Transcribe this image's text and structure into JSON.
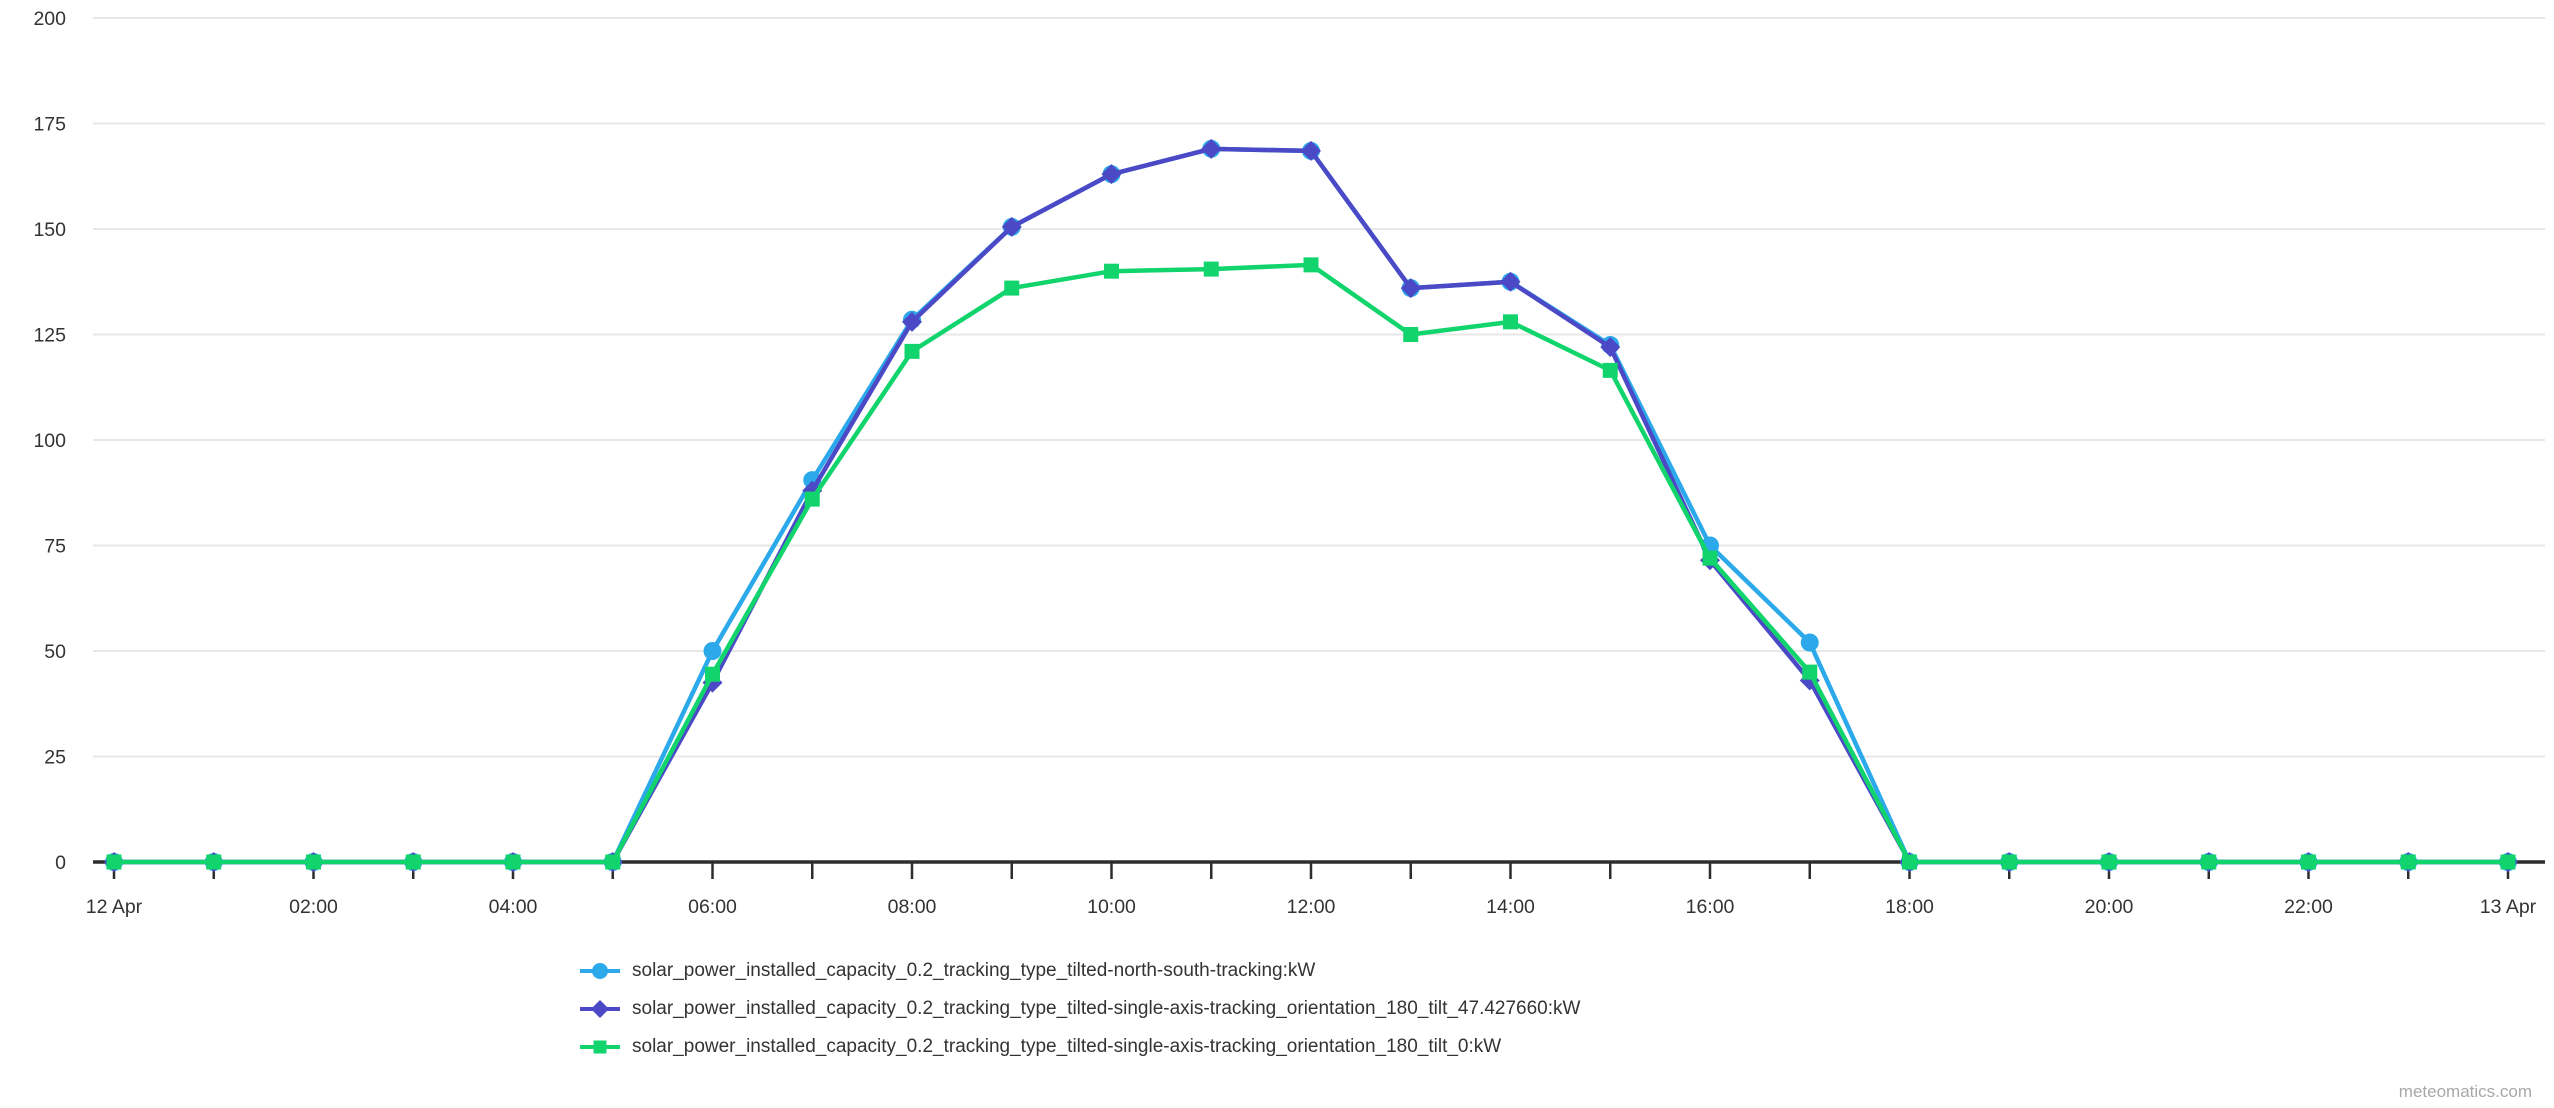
{
  "watermark": "meteomatics.com",
  "colors": {
    "grid": "#e7e7e7",
    "axis": "#2d2d2d",
    "tick_label": "#333333",
    "legend_text": "#333333",
    "watermark": "#a8a8a8",
    "background": "#ffffff"
  },
  "chart_data": {
    "type": "line",
    "title": "",
    "xlabel": "",
    "ylabel": "",
    "ylim": [
      0,
      200
    ],
    "yticks": [
      0,
      25,
      50,
      75,
      100,
      125,
      150,
      175,
      200
    ],
    "grid": true,
    "legend_position": "bottom",
    "x_axis_unit": "hour",
    "x_hours": [
      0,
      1,
      2,
      3,
      4,
      5,
      6,
      7,
      8,
      9,
      10,
      11,
      12,
      13,
      14,
      15,
      16,
      17,
      18,
      19,
      20,
      21,
      22,
      23,
      24
    ],
    "xtick_labels": [
      {
        "hour": 0,
        "label": "12 Apr"
      },
      {
        "hour": 2,
        "label": "02:00"
      },
      {
        "hour": 4,
        "label": "04:00"
      },
      {
        "hour": 6,
        "label": "06:00"
      },
      {
        "hour": 8,
        "label": "08:00"
      },
      {
        "hour": 10,
        "label": "10:00"
      },
      {
        "hour": 12,
        "label": "12:00"
      },
      {
        "hour": 14,
        "label": "14:00"
      },
      {
        "hour": 16,
        "label": "16:00"
      },
      {
        "hour": 18,
        "label": "18:00"
      },
      {
        "hour": 20,
        "label": "20:00"
      },
      {
        "hour": 22,
        "label": "22:00"
      },
      {
        "hour": 24,
        "label": "13 Apr"
      }
    ],
    "series": [
      {
        "name": "solar_power_installed_capacity_0.2_tracking_type_tilted-north-south-tracking:kW",
        "color": "#2ba9ea",
        "marker": "circle",
        "values": [
          0,
          0,
          0,
          0,
          0,
          0,
          50,
          90.5,
          128.5,
          150.5,
          163,
          169,
          168.5,
          136,
          137.5,
          122.5,
          75,
          52,
          0,
          0,
          0,
          0,
          0,
          0,
          0
        ]
      },
      {
        "name": "solar_power_installed_capacity_0.2_tracking_type_tilted-single-axis-tracking_orientation_180_tilt_47.427660:kW",
        "color": "#4b49c6",
        "marker": "diamond",
        "values": [
          0,
          0,
          0,
          0,
          0,
          0,
          42.5,
          88,
          128,
          150.5,
          163,
          169,
          168.5,
          136,
          137.5,
          122,
          71.5,
          43,
          0,
          0,
          0,
          0,
          0,
          0,
          0
        ]
      },
      {
        "name": "solar_power_installed_capacity_0.2_tracking_type_tilted-single-axis-tracking_orientation_180_tilt_0:kW",
        "color": "#11d46c",
        "marker": "square",
        "values": [
          0,
          0,
          0,
          0,
          0,
          0,
          44.5,
          86,
          121,
          136,
          140,
          140.5,
          141.5,
          125,
          128,
          116.5,
          72,
          45,
          0,
          0,
          0,
          0,
          0,
          0,
          0
        ]
      }
    ]
  }
}
